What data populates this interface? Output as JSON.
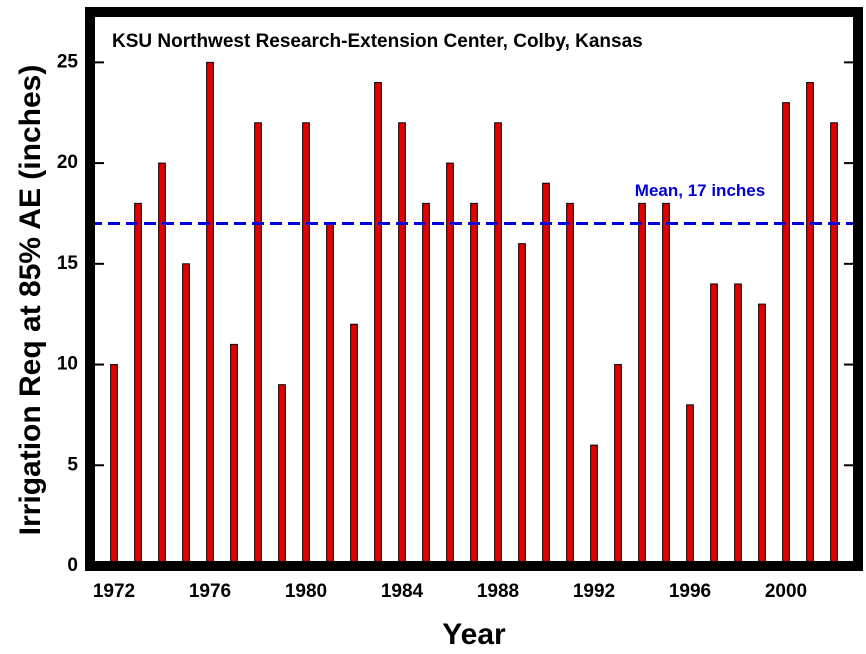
{
  "chart_data": {
    "type": "bar",
    "title": "KSU Northwest Research-Extension Center, Colby, Kansas",
    "xlabel": "Year",
    "ylabel": "Irrigation Req at 85% AE (inches)",
    "x": [
      1972,
      1973,
      1974,
      1975,
      1976,
      1977,
      1978,
      1979,
      1980,
      1981,
      1982,
      1983,
      1984,
      1985,
      1986,
      1987,
      1988,
      1989,
      1990,
      1991,
      1992,
      1993,
      1994,
      1995,
      1996,
      1997,
      1998,
      1999,
      2000,
      2001,
      2002
    ],
    "values": [
      10,
      18,
      20,
      15,
      25,
      11,
      22,
      9,
      22,
      17,
      12,
      24,
      22,
      18,
      20,
      18,
      22,
      16,
      19,
      18,
      6,
      10,
      18,
      18,
      8,
      14,
      14,
      13,
      23,
      24,
      22
    ],
    "color": "#e00000",
    "mean": {
      "value": 17,
      "label": "Mean, 17 inches",
      "color": "#0000dd"
    },
    "xlim": [
      1971,
      2003
    ],
    "xticks": [
      1972,
      1976,
      1980,
      1984,
      1988,
      1992,
      1996,
      2000
    ],
    "ylim": [
      0,
      27.5
    ],
    "yticks": [
      0,
      5,
      10,
      15,
      20,
      25
    ],
    "grid": false
  }
}
